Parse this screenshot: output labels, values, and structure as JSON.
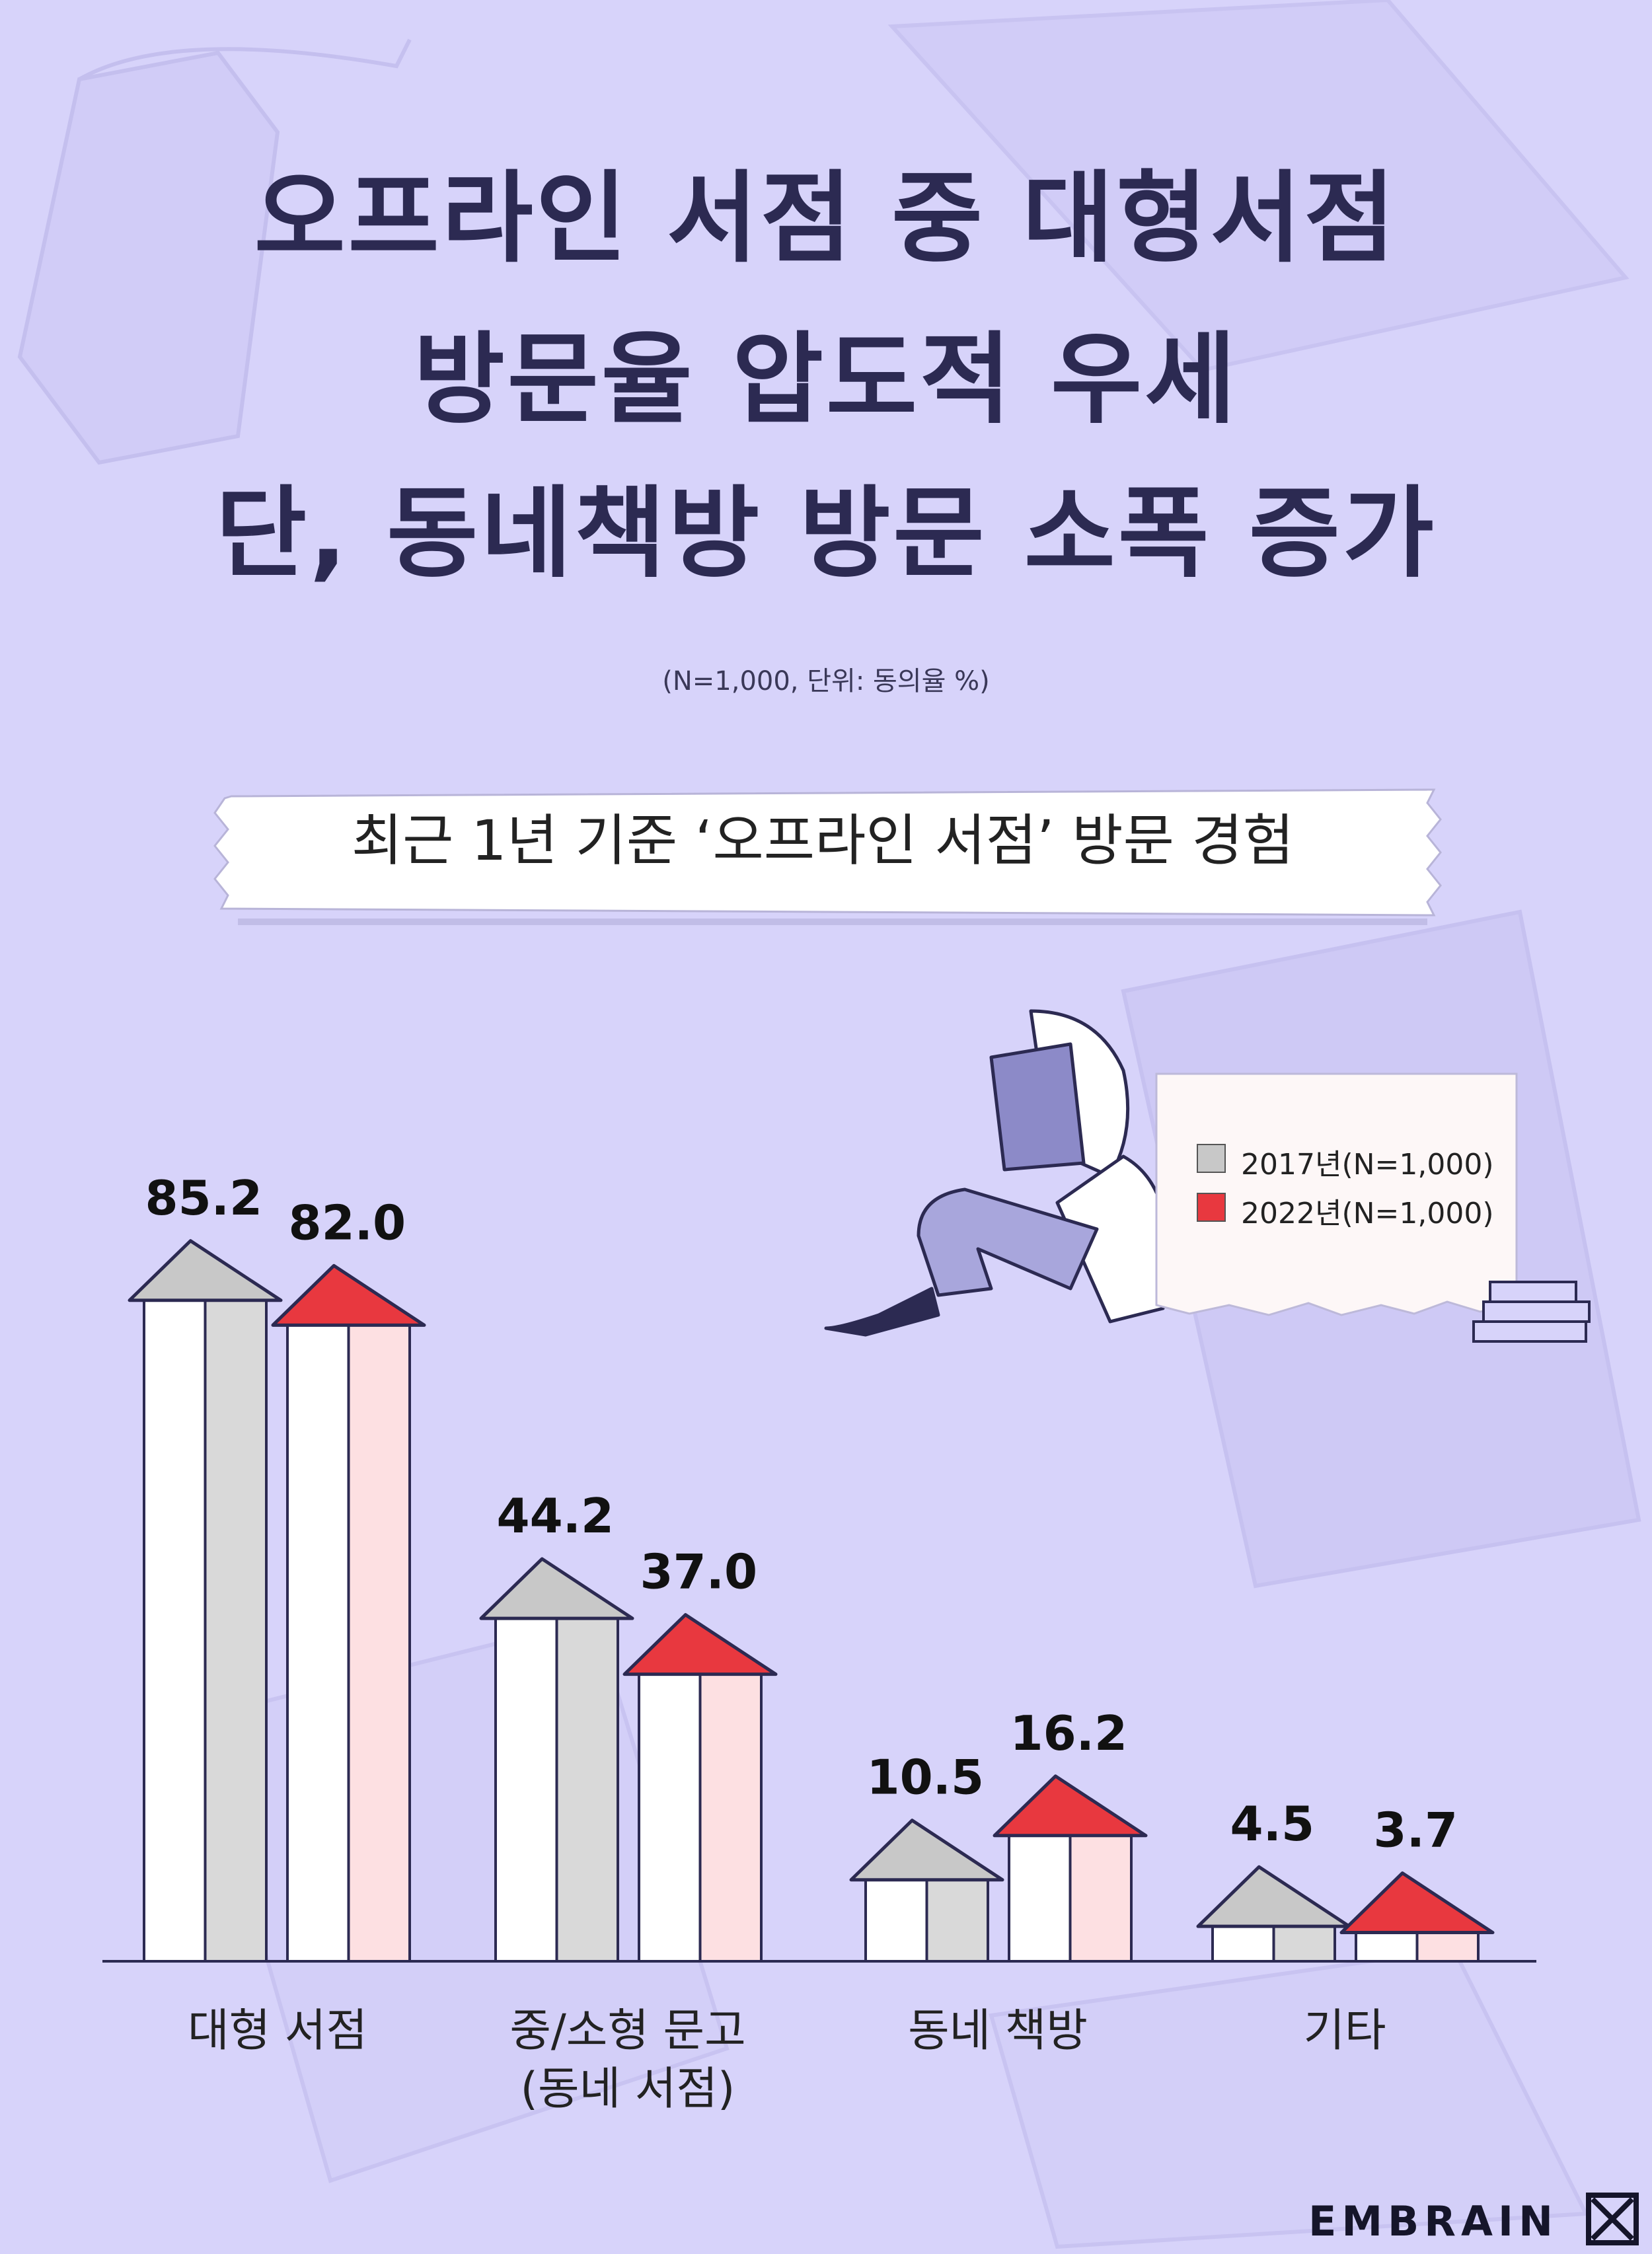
{
  "title_lines": [
    "오프라인 서점 중 대형서점",
    "방문율 압도적 우세",
    "단, 동네책방 방문 소폭 증가"
  ],
  "subtitle": "(N=1,000, 단위: 동의율 %)",
  "chart_data": {
    "type": "bar",
    "title": "최근 1년 기준 ‘오프라인 서점’ 방문 경험",
    "categories": [
      "대형 서점",
      "중/소형 문고\n(동네 서점)",
      "동네 책방",
      "기타"
    ],
    "series": [
      {
        "name": "2017년(N=1,000)",
        "values": [
          85.2,
          44.2,
          10.5,
          4.5
        ],
        "color": "#c8c8c8"
      },
      {
        "name": "2022년(N=1,000)",
        "values": [
          82.0,
          37.0,
          16.2,
          3.7
        ],
        "color": "#e8383f"
      }
    ],
    "value_labels": [
      [
        "85.2",
        "44.2",
        "10.5",
        "4.5"
      ],
      [
        "82.0",
        "37.0",
        "16.2",
        "3.7"
      ]
    ],
    "ylim": [
      0,
      100
    ],
    "grid": false,
    "legend": "top-right"
  },
  "brand": "EMBRAIN",
  "colors": {
    "background": "#d7d3fa",
    "title": "#2c2a52",
    "gray_roof": "#c8c8c8",
    "red_roof": "#e8383f",
    "pink_body": "#fde0e2"
  }
}
